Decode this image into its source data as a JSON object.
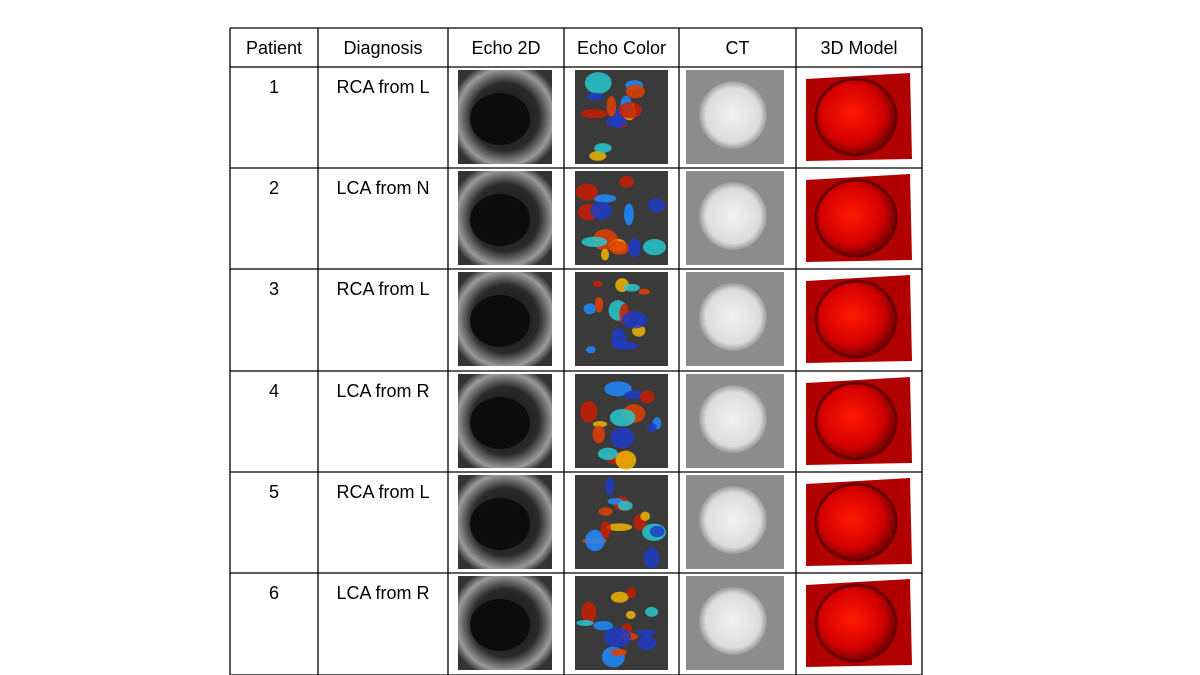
{
  "table": {
    "header": [
      "Patient",
      "Diagnosis",
      "Echo 2D",
      "Echo Color",
      "CT",
      "3D Model"
    ],
    "rows": [
      [
        1,
        "RCA from L"
      ],
      [
        2,
        "LCA from N"
      ],
      [
        3,
        "RCA from L"
      ],
      [
        4,
        "LCA from R"
      ],
      [
        5,
        "RCA from L"
      ],
      [
        6,
        "LCA from R"
      ]
    ]
  }
}
